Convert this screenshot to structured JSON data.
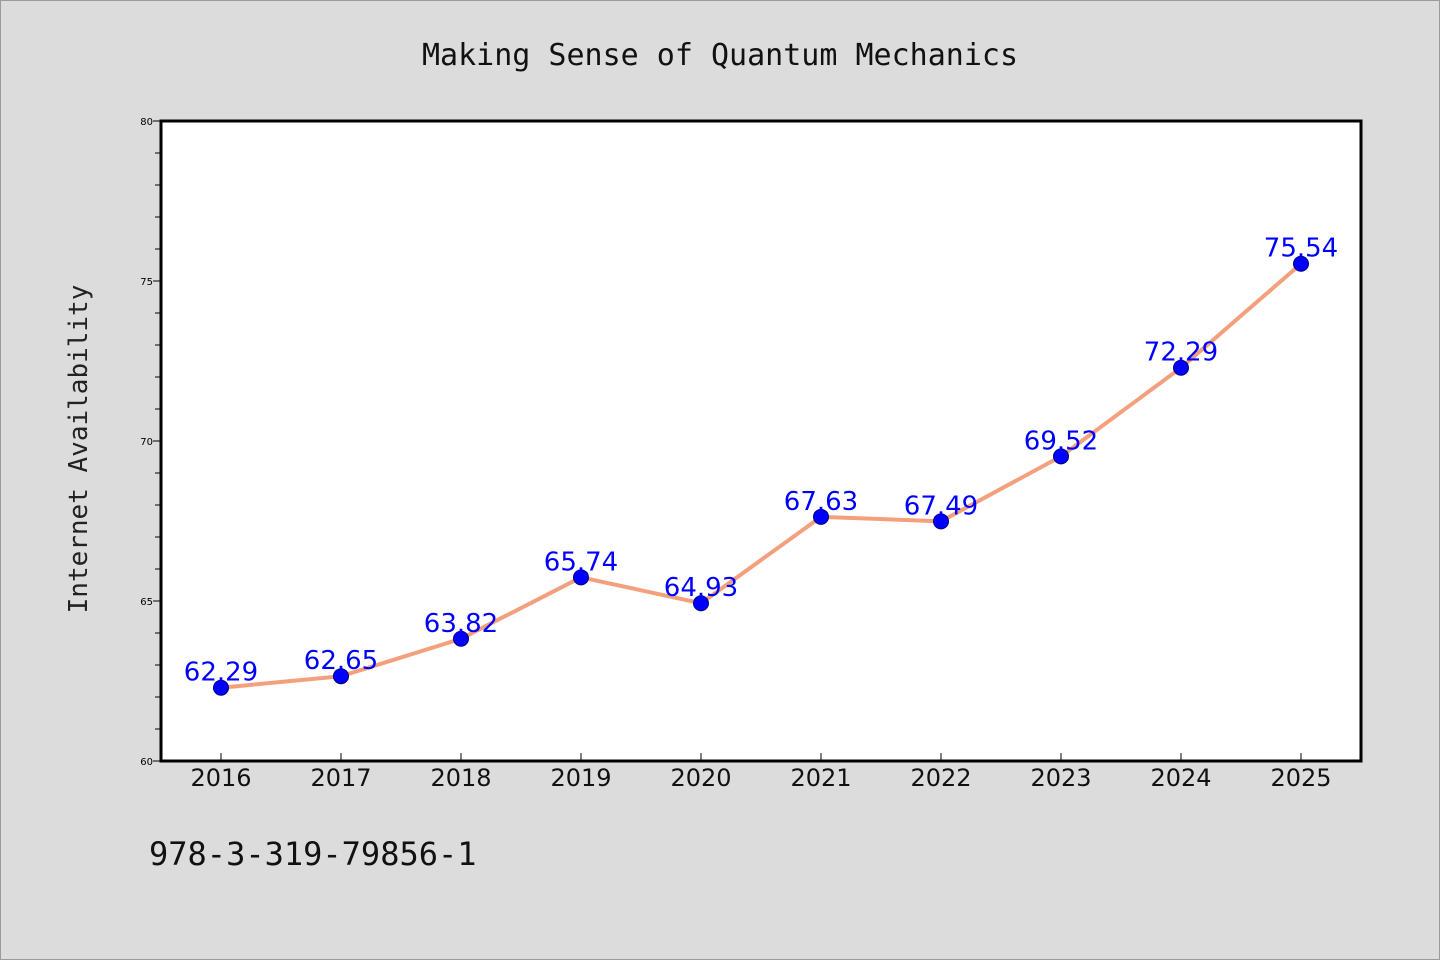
{
  "chart_data": {
    "type": "line",
    "title": "Making Sense of Quantum Mechanics",
    "xlabel": "",
    "ylabel": "Internet Availability",
    "categories": [
      "2016",
      "2017",
      "2018",
      "2019",
      "2020",
      "2021",
      "2022",
      "2023",
      "2024",
      "2025"
    ],
    "series": [
      {
        "values": [
          62.29,
          62.65,
          63.82,
          65.74,
          64.93,
          67.63,
          67.49,
          69.52,
          72.29,
          75.54
        ],
        "value_labels": [
          "62.29",
          "62.65",
          "63.82",
          "65.74",
          "64.93",
          "67.63",
          "67.49",
          "69.52",
          "72.29",
          "75.54"
        ]
      }
    ],
    "ylim": [
      60,
      80
    ],
    "yticks": [
      60,
      65,
      70,
      75,
      80
    ],
    "grid": false,
    "legend": "none",
    "colors": {
      "line": "#f4a07c",
      "marker": "#0000ff",
      "data_label": "#0000ff",
      "background": "#dcdcdc",
      "plot_background": "#ffffff"
    }
  },
  "footer": {
    "isbn": "978-3-319-79856-1"
  }
}
